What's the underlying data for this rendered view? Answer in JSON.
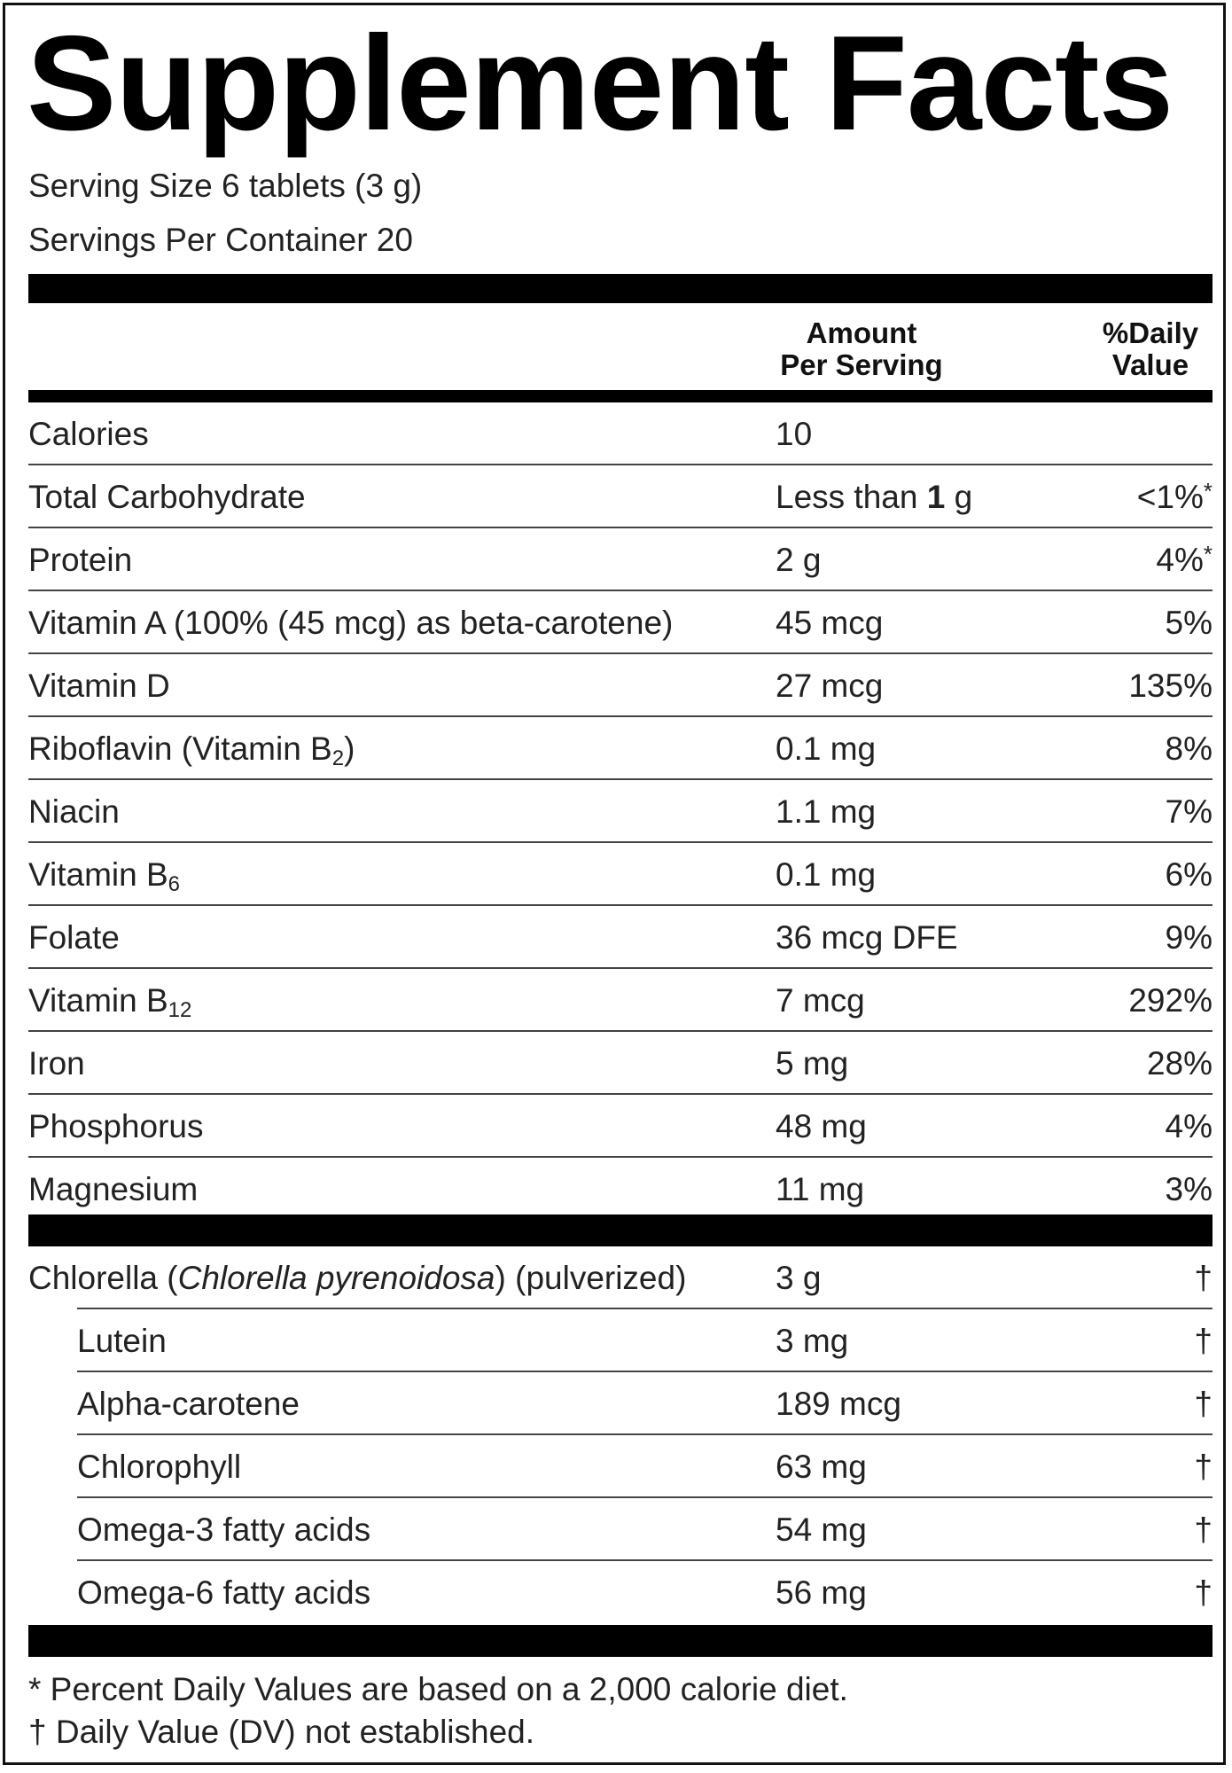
{
  "title": "Supplement Facts",
  "serving_size": "Serving Size 6 tablets (3 g)",
  "servings_per_container": "Servings Per Container 20",
  "header": {
    "amount_line1": "Amount",
    "amount_line2": "Per Serving",
    "dv_line1": "%Daily",
    "dv_line2": "Value"
  },
  "nutrients": [
    {
      "name": "Calories",
      "sub": "",
      "amount": "10",
      "dv": "",
      "mark": ""
    },
    {
      "name": "Total Carbohydrate",
      "sub": "",
      "amount_prefix": "Less than ",
      "amount_bold": "1",
      "amount_suffix": " g",
      "dv": "<1%",
      "mark": "*"
    },
    {
      "name": "Protein",
      "sub": "",
      "amount": "2 g",
      "dv": "4%",
      "mark": "*"
    },
    {
      "name": "Vitamin A (100% (45 mcg) as beta-carotene)",
      "sub": "",
      "amount": "45 mcg",
      "dv": "5%",
      "mark": ""
    },
    {
      "name": "Vitamin D",
      "sub": "",
      "amount": "27 mcg",
      "dv": "135%",
      "mark": ""
    },
    {
      "name": "Riboflavin (Vitamin B",
      "sub": "2",
      "name_after": ")",
      "amount": "0.1 mg",
      "dv": "8%",
      "mark": ""
    },
    {
      "name": "Niacin",
      "sub": "",
      "amount": "1.1 mg",
      "dv": "7%",
      "mark": ""
    },
    {
      "name": "Vitamin B",
      "sub": "6",
      "amount": "0.1 mg",
      "dv": "6%",
      "mark": ""
    },
    {
      "name": "Folate",
      "sub": "",
      "amount": "36 mcg DFE",
      "dv": "9%",
      "mark": ""
    },
    {
      "name": "Vitamin B",
      "sub": "12",
      "amount": "7 mcg",
      "dv": "292%",
      "mark": ""
    },
    {
      "name": "Iron",
      "sub": "",
      "amount": "5 mg",
      "dv": "28%",
      "mark": ""
    },
    {
      "name": "Phosphorus",
      "sub": "",
      "amount": "48 mg",
      "dv": "4%",
      "mark": ""
    },
    {
      "name": "Magnesium",
      "sub": "",
      "amount": "11 mg",
      "dv": "3%",
      "mark": ""
    }
  ],
  "blend": {
    "name_prefix": "Chlorella (",
    "name_italic": "Chlorella pyrenoidosa",
    "name_suffix": ") (pulverized)",
    "amount": "3 g",
    "dv": "†",
    "components": [
      {
        "name": "Lutein",
        "amount": "3 mg",
        "dv": "†"
      },
      {
        "name": "Alpha-carotene",
        "amount": "189 mcg",
        "dv": "†"
      },
      {
        "name": "Chlorophyll",
        "amount": "63 mg",
        "dv": "†"
      },
      {
        "name": "Omega-3 fatty acids",
        "amount": "54 mg",
        "dv": "†"
      },
      {
        "name": "Omega-6 fatty acids",
        "amount": "56 mg",
        "dv": "†"
      }
    ]
  },
  "footnotes": [
    "* Percent Daily Values are based on a 2,000 calorie diet.",
    "† Daily Value (DV) not established."
  ]
}
